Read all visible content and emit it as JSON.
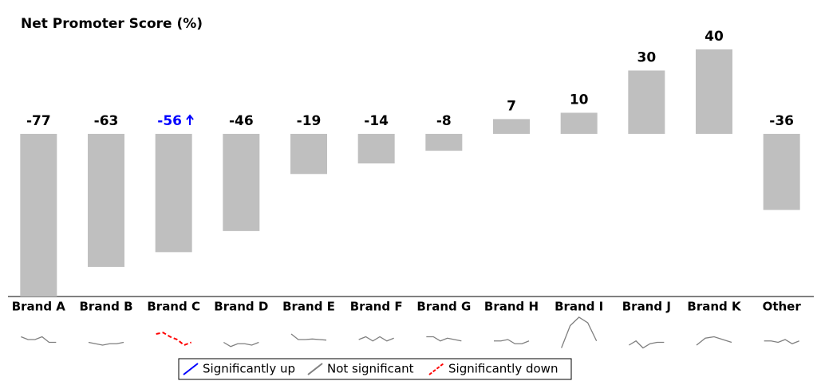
{
  "chart_data": {
    "type": "bar",
    "title": "Net Promoter Score (%)",
    "categories": [
      "Brand A",
      "Brand B",
      "Brand C",
      "Brand D",
      "Brand E",
      "Brand F",
      "Brand G",
      "Brand H",
      "Brand I",
      "Brand J",
      "Brand K",
      "Other"
    ],
    "values": [
      -77,
      -63,
      -56,
      -46,
      -19,
      -14,
      -8,
      7,
      10,
      30,
      40,
      -36
    ],
    "color": "#bfbfbf",
    "label_colors": [
      "#000000",
      "#000000",
      "#0000ff",
      "#000000",
      "#000000",
      "#000000",
      "#000000",
      "#000000",
      "#000000",
      "#000000",
      "#000000",
      "#000000"
    ],
    "ylim": [
      -77,
      43
    ],
    "trend_ylim": [
      0,
      12
    ],
    "trends": [
      {
        "significance": "none",
        "values": [
          5,
          4,
          4,
          5,
          3,
          3
        ]
      },
      {
        "significance": "none",
        "values": [
          3,
          2.5,
          2,
          2.5,
          2.5,
          3
        ]
      },
      {
        "significance": "down",
        "values": [
          6,
          6.5,
          5,
          4,
          2,
          3
        ]
      },
      {
        "significance": "none",
        "values": [
          3,
          1.5,
          2.5,
          2.5,
          2,
          3
        ]
      },
      {
        "significance": "none",
        "values": [
          6,
          4,
          4,
          4.2,
          4,
          3.8
        ]
      },
      {
        "significance": "none",
        "values": [
          4,
          5,
          3.5,
          5,
          3.5,
          4.5
        ]
      },
      {
        "significance": "none",
        "values": [
          5,
          5,
          3.5,
          4.5,
          4,
          3.5
        ]
      },
      {
        "significance": "none",
        "values": [
          3.5,
          3.5,
          4,
          2.5,
          2.5,
          3.5
        ]
      },
      {
        "significance": "none",
        "values": [
          1,
          9,
          12,
          10,
          3.5
        ]
      },
      {
        "significance": "none",
        "values": [
          2,
          3.5,
          1,
          2.5,
          3,
          3
        ]
      },
      {
        "significance": "none",
        "values": [
          2,
          4.5,
          5,
          4,
          3
        ]
      },
      {
        "significance": "none",
        "values": [
          3.5,
          3.5,
          3,
          4,
          2.5,
          3.5
        ]
      }
    ],
    "legend": [
      {
        "key": "up",
        "label": "Significantly up",
        "color": "#0000ff",
        "dash": false
      },
      {
        "key": "none",
        "label": "Not significant",
        "color": "#7f7f7f",
        "dash": false
      },
      {
        "key": "down",
        "label": "Significantly down",
        "color": "#ff0000",
        "dash": true
      }
    ]
  }
}
